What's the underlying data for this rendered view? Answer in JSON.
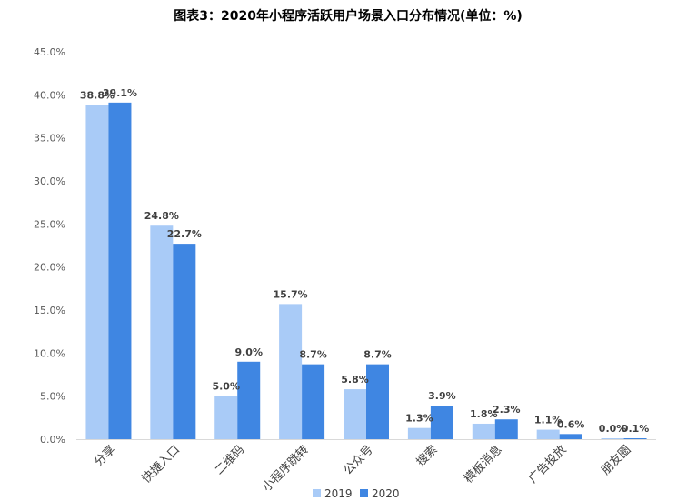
{
  "chart_data": {
    "type": "bar",
    "title": "图表3：2020年小程序活跃用户场景入口分布情况(单位：%)",
    "categories": [
      "分享",
      "快捷入口",
      "二维码",
      "小程序跳转",
      "公众号",
      "搜索",
      "模板消息",
      "广告投放",
      "朋友圈"
    ],
    "series": [
      {
        "name": "2019",
        "values": [
          38.8,
          24.8,
          5.0,
          15.7,
          5.8,
          1.3,
          1.8,
          1.1,
          0.0
        ],
        "labels": [
          "38.8%",
          "24.8%",
          "5.0%",
          "15.7%",
          "5.8%",
          "1.3%",
          "1.8%",
          "1.1%",
          "0.0%"
        ],
        "color": "#a9cbf7"
      },
      {
        "name": "2020",
        "values": [
          39.1,
          22.7,
          9.0,
          8.7,
          8.7,
          3.9,
          2.3,
          0.6,
          0.1
        ],
        "labels": [
          "39.1%",
          "22.7%",
          "9.0%",
          "8.7%",
          "8.7%",
          "3.9%",
          "2.3%",
          "0.6%",
          "0.1%"
        ],
        "color": "#3f86e2"
      }
    ],
    "ylim": [
      0,
      45
    ],
    "yticks": [
      0,
      5,
      10,
      15,
      20,
      25,
      30,
      35,
      40,
      45
    ],
    "ytick_labels": [
      "0.0%",
      "5.0%",
      "10.0%",
      "15.0%",
      "20.0%",
      "25.0%",
      "30.0%",
      "35.0%",
      "40.0%",
      "45.0%"
    ],
    "grid": false,
    "legend_position": "bottom"
  }
}
